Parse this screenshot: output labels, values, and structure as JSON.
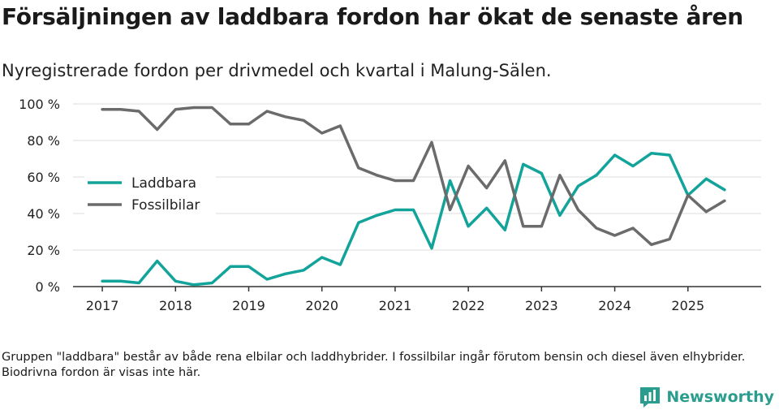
{
  "header": {
    "title": "Försäljningen av laddbara fordon har ökat de senaste åren",
    "subtitle": "Nyregistrerade fordon per drivmedel och kvartal i Malung-Sälen."
  },
  "footer": {
    "note": "Gruppen \"laddbara\" består av både rena elbilar och laddhybrider. I fossilbilar ingår förutom bensin och diesel även elhybrider. Biodrivna fordon är visas inte här.",
    "brand": "Newsworthy",
    "brand_icon": "newsworthy-logo-icon"
  },
  "chart_data": {
    "type": "line",
    "title": "Försäljningen av laddbara fordon har ökat de senaste åren",
    "subtitle": "Nyregistrerade fordon per drivmedel och kvartal i Malung-Sälen.",
    "xlabel": "",
    "ylabel": "",
    "x_start": 2017.0,
    "x_step": 0.25,
    "xlim": [
      2016.6,
      2026.0
    ],
    "ylim": [
      0,
      100
    ],
    "x_ticks": [
      2017,
      2018,
      2019,
      2020,
      2021,
      2022,
      2023,
      2024,
      2025
    ],
    "x_tick_labels": [
      "2017",
      "2018",
      "2019",
      "2020",
      "2021",
      "2022",
      "2023",
      "2024",
      "2025"
    ],
    "y_ticks": [
      0,
      20,
      40,
      60,
      80,
      100
    ],
    "y_tick_labels": [
      "0 %",
      "20 %",
      "40 %",
      "60 %",
      "80 %",
      "100 %"
    ],
    "grid": true,
    "legend_position": "middle-left",
    "series": [
      {
        "name": "Laddbara",
        "color": "#12a39a",
        "values": [
          3,
          3,
          2,
          14,
          3,
          1,
          2,
          11,
          11,
          4,
          7,
          9,
          16,
          12,
          35,
          39,
          42,
          42,
          21,
          58,
          33,
          43,
          31,
          67,
          62,
          39,
          55,
          61,
          72,
          66,
          73,
          72,
          50,
          59,
          53
        ]
      },
      {
        "name": "Fossilbilar",
        "color": "#6b6b6b",
        "values": [
          97,
          97,
          96,
          86,
          97,
          98,
          98,
          89,
          89,
          96,
          93,
          91,
          84,
          88,
          65,
          61,
          58,
          58,
          79,
          42,
          66,
          54,
          69,
          33,
          33,
          61,
          42,
          32,
          28,
          32,
          23,
          26,
          50,
          41,
          47
        ]
      }
    ]
  }
}
